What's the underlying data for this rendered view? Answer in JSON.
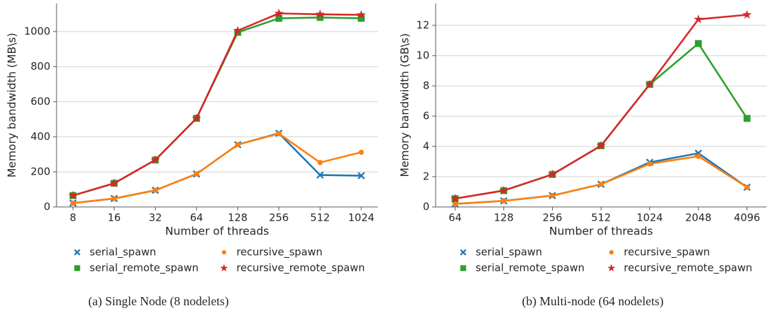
{
  "chart_data": [
    {
      "type": "line",
      "caption": "(a) Single Node (8 nodelets)",
      "x_label": "Number of threads",
      "y_label": "Memory bandwidth (MB\\s)",
      "categories": [
        "8",
        "16",
        "32",
        "64",
        "128",
        "256",
        "512",
        "1024"
      ],
      "ylim": [
        0,
        1160
      ],
      "yticks": [
        0,
        200,
        400,
        600,
        800,
        1000
      ],
      "grid": true,
      "series": [
        {
          "name": "serial_spawn",
          "color": "#1f77b4",
          "marker": "x",
          "values": [
            22,
            48,
            95,
            188,
            355,
            420,
            182,
            178
          ]
        },
        {
          "name": "recursive_spawn",
          "color": "#ff7f0e",
          "marker": "circle",
          "values": [
            22,
            48,
            95,
            188,
            355,
            418,
            253,
            312
          ]
        },
        {
          "name": "serial_remote_spawn",
          "color": "#2ca02c",
          "marker": "square",
          "values": [
            65,
            135,
            268,
            505,
            995,
            1075,
            1080,
            1075
          ]
        },
        {
          "name": "recursive_remote_spawn",
          "color": "#d62728",
          "marker": "star",
          "values": [
            65,
            135,
            268,
            505,
            1005,
            1103,
            1098,
            1095
          ]
        }
      ]
    },
    {
      "type": "line",
      "caption": "(b) Multi-node (64 nodelets)",
      "x_label": "Number of threads",
      "y_label": "Memory bandwidth (GB\\s)",
      "categories": [
        "64",
        "128",
        "256",
        "512",
        "1024",
        "2048",
        "4096"
      ],
      "ylim": [
        0,
        13.45
      ],
      "yticks": [
        0,
        2,
        4,
        6,
        8,
        10,
        12
      ],
      "grid": true,
      "series": [
        {
          "name": "serial_spawn",
          "color": "#1f77b4",
          "marker": "x",
          "values": [
            0.2,
            0.4,
            0.75,
            1.5,
            2.95,
            3.55,
            1.3
          ]
        },
        {
          "name": "recursive_spawn",
          "color": "#ff7f0e",
          "marker": "circle",
          "values": [
            0.2,
            0.4,
            0.75,
            1.5,
            2.85,
            3.35,
            1.3
          ]
        },
        {
          "name": "serial_remote_spawn",
          "color": "#2ca02c",
          "marker": "square",
          "values": [
            0.55,
            1.08,
            2.15,
            4.05,
            8.1,
            10.8,
            5.85
          ]
        },
        {
          "name": "recursive_remote_spawn",
          "color": "#d62728",
          "marker": "star",
          "values": [
            0.55,
            1.08,
            2.15,
            4.05,
            8.1,
            12.4,
            12.7
          ]
        }
      ]
    }
  ]
}
